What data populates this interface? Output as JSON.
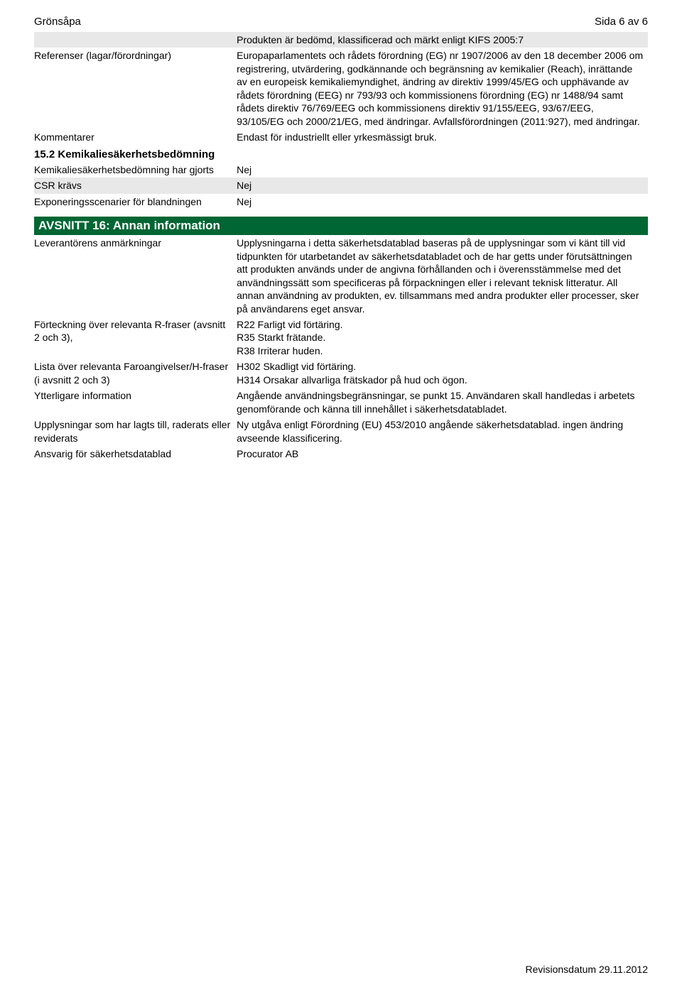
{
  "header": {
    "product": "Grönsåpa",
    "page_num": "Sida 6 av 6"
  },
  "top_table": {
    "row1": {
      "label": "",
      "value": "Produkten är bedömd, klassificerad och märkt enligt KIFS 2005:7"
    },
    "row2": {
      "label": "Referenser (lagar/förordningar)",
      "value": "Europaparlamentets och rådets förordning (EG) nr 1907/2006 av den 18 december 2006 om registrering, utvärdering, godkännande och begränsning av kemikalier (Reach), inrättande av en europeisk kemikaliemyndighet, ändring av direktiv 1999/45/EG och upphävande av rådets förordning (EEG) nr 793/93 och kommissionens förordning (EG) nr 1488/94 samt rådets direktiv 76/769/EEG och kommissionens direktiv 91/155/EEG, 93/67/EEG, 93/105/EG och 2000/21/EG, med ändringar. Avfallsförordningen (2011:927), med ändringar."
    },
    "row3": {
      "label": "Kommentarer",
      "value": "Endast för industriellt eller yrkesmässigt bruk."
    }
  },
  "section15_2": {
    "heading": "15.2 Kemikaliesäkerhetsbedömning",
    "row1": {
      "label": "Kemikaliesäkerhetsbedömning har gjorts",
      "value": "Nej"
    },
    "row2": {
      "label": "CSR krävs",
      "value": "Nej"
    },
    "row3": {
      "label": "Exponeringsscenarier för blandningen",
      "value": "Nej"
    }
  },
  "section16": {
    "heading": "AVSNITT 16: Annan information",
    "row1": {
      "label": "Leverantörens anmärkningar",
      "value": "Upplysningarna i detta säkerhetsdatablad baseras på de upplysningar som vi känt till vid tidpunkten för utarbetandet av säkerhetsdatabladet och de har getts under förutsättningen att produkten används under de angivna förhållanden och i överensstämmelse med det användningssätt som specificeras på förpackningen eller i relevant teknisk litteratur. All annan användning av produkten, ev. tillsammans med andra produkter eller processer, sker på användarens eget ansvar."
    },
    "row2": {
      "label": "Förteckning över relevanta R-fraser (avsnitt 2 och 3),",
      "value": "R22 Farligt vid förtäring.\nR35 Starkt frätande.\nR38 Irriterar huden."
    },
    "row3": {
      "label": "Lista över relevanta Faroangivelser/H-fraser (i avsnitt 2 och 3)",
      "value": "H302 Skadligt vid förtäring.\nH314 Orsakar allvarliga frätskador på hud och ögon."
    },
    "row4": {
      "label": "Ytterligare information",
      "value": "Angående användningsbegränsningar, se punkt 15. Användaren skall handledas i arbetets genomförande och känna till innehållet i säkerhetsdatabladet."
    },
    "row5": {
      "label": "Upplysningar som har lagts till, raderats eller reviderats",
      "value": "Ny utgåva enligt Förordning (EU) 453/2010 angående säkerhetsdatablad. ingen ändring avseende klassificering."
    },
    "row6": {
      "label": "Ansvarig för säkerhetsdatablad",
      "value": "Procurator AB"
    }
  },
  "footer": {
    "revision": "Revisionsdatum 29.11.2012"
  }
}
